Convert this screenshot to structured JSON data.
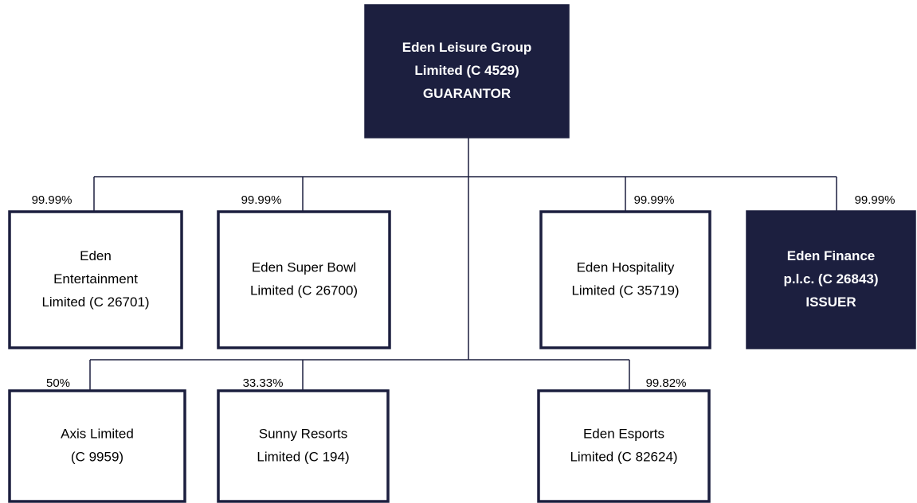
{
  "nodes": [
    {
      "lines": [
        "Eden Leisure Group",
        "Limited (C 4529)",
        "GUARANTOR"
      ]
    },
    {
      "lines": [
        "Eden",
        "Entertainment",
        "Limited (C 26701)"
      ],
      "share": "99.99%"
    },
    {
      "lines": [
        "Eden Super Bowl",
        "Limited (C 26700)"
      ],
      "share": "99.99%"
    },
    {
      "lines": [
        "Eden Hospitality",
        "Limited (C 35719)"
      ],
      "share": "99.99%"
    },
    {
      "lines": [
        "Eden Finance",
        "p.l.c. (C 26843)",
        "ISSUER"
      ],
      "share": "99.99%"
    },
    {
      "lines": [
        "Axis Limited",
        "(C 9959)"
      ],
      "share": "50%"
    },
    {
      "lines": [
        "Sunny Resorts",
        "Limited (C 194)"
      ],
      "share": "33.33%"
    },
    {
      "lines": [
        "Eden Esports",
        "Limited (C 82624)"
      ],
      "share": "99.82%"
    }
  ]
}
